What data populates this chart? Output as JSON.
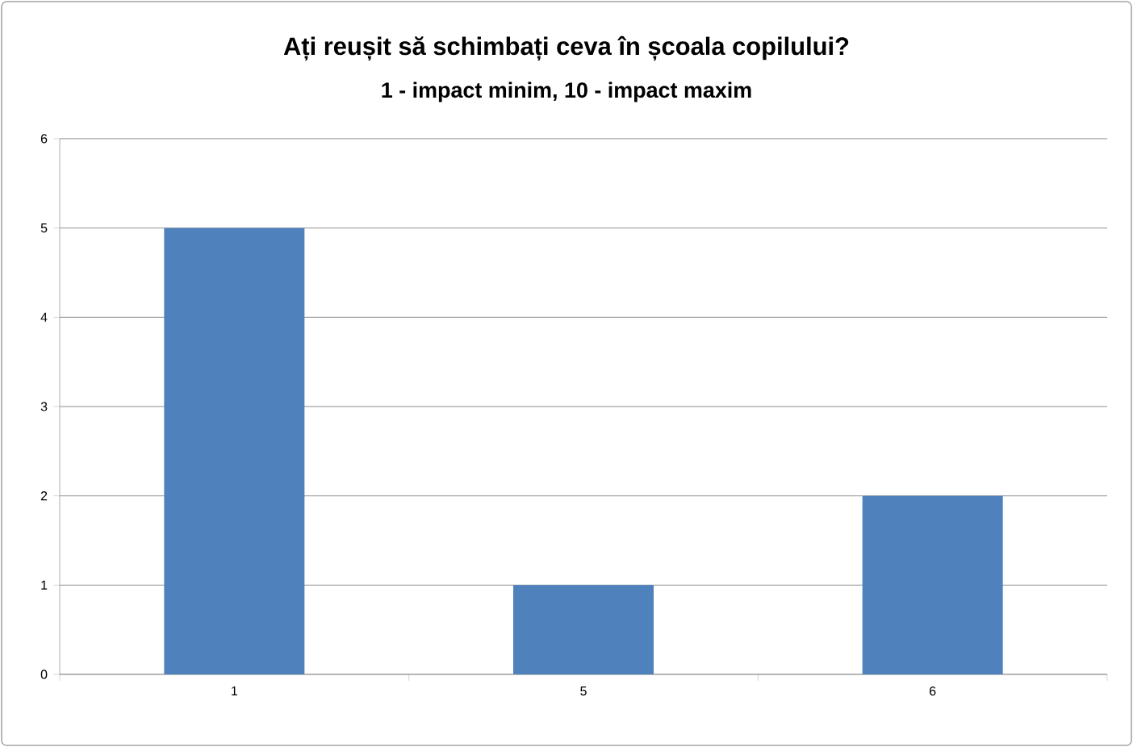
{
  "chart_data": {
    "type": "bar",
    "title": "Ați reușit să schimbați ceva în școala copilului?",
    "subtitle": "1 - impact minim, 10 - impact maxim",
    "categories": [
      "1",
      "5",
      "6"
    ],
    "values": [
      5,
      1,
      2
    ],
    "color": "#4f81bd",
    "ylim": [
      0,
      6
    ],
    "yticks": [
      0,
      1,
      2,
      3,
      4,
      5,
      6
    ],
    "grid": "y"
  }
}
